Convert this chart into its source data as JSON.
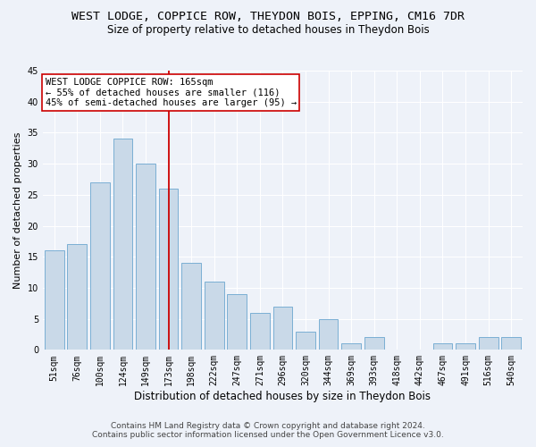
{
  "title": "WEST LODGE, COPPICE ROW, THEYDON BOIS, EPPING, CM16 7DR",
  "subtitle": "Size of property relative to detached houses in Theydon Bois",
  "xlabel": "Distribution of detached houses by size in Theydon Bois",
  "ylabel": "Number of detached properties",
  "categories": [
    "51sqm",
    "76sqm",
    "100sqm",
    "124sqm",
    "149sqm",
    "173sqm",
    "198sqm",
    "222sqm",
    "247sqm",
    "271sqm",
    "296sqm",
    "320sqm",
    "344sqm",
    "369sqm",
    "393sqm",
    "418sqm",
    "442sqm",
    "467sqm",
    "491sqm",
    "516sqm",
    "540sqm"
  ],
  "values": [
    16,
    17,
    27,
    34,
    30,
    26,
    14,
    11,
    9,
    6,
    7,
    3,
    5,
    1,
    2,
    0,
    0,
    1,
    1,
    2,
    2
  ],
  "bar_color": "#c9d9e8",
  "bar_edge_color": "#7aafd4",
  "ylim": [
    0,
    45
  ],
  "yticks": [
    0,
    5,
    10,
    15,
    20,
    25,
    30,
    35,
    40,
    45
  ],
  "vline_x": 5,
  "vline_color": "#cc0000",
  "annotation_line1": "WEST LODGE COPPICE ROW: 165sqm",
  "annotation_line2": "← 55% of detached houses are smaller (116)",
  "annotation_line3": "45% of semi-detached houses are larger (95) →",
  "annotation_box_color": "#ffffff",
  "annotation_box_edge_color": "#cc0000",
  "footer_line1": "Contains HM Land Registry data © Crown copyright and database right 2024.",
  "footer_line2": "Contains public sector information licensed under the Open Government Licence v3.0.",
  "background_color": "#eef2f9",
  "grid_color": "#ffffff",
  "title_fontsize": 9.5,
  "subtitle_fontsize": 8.5,
  "xlabel_fontsize": 8.5,
  "ylabel_fontsize": 8,
  "tick_fontsize": 7,
  "annotation_fontsize": 7.5,
  "footer_fontsize": 6.5
}
